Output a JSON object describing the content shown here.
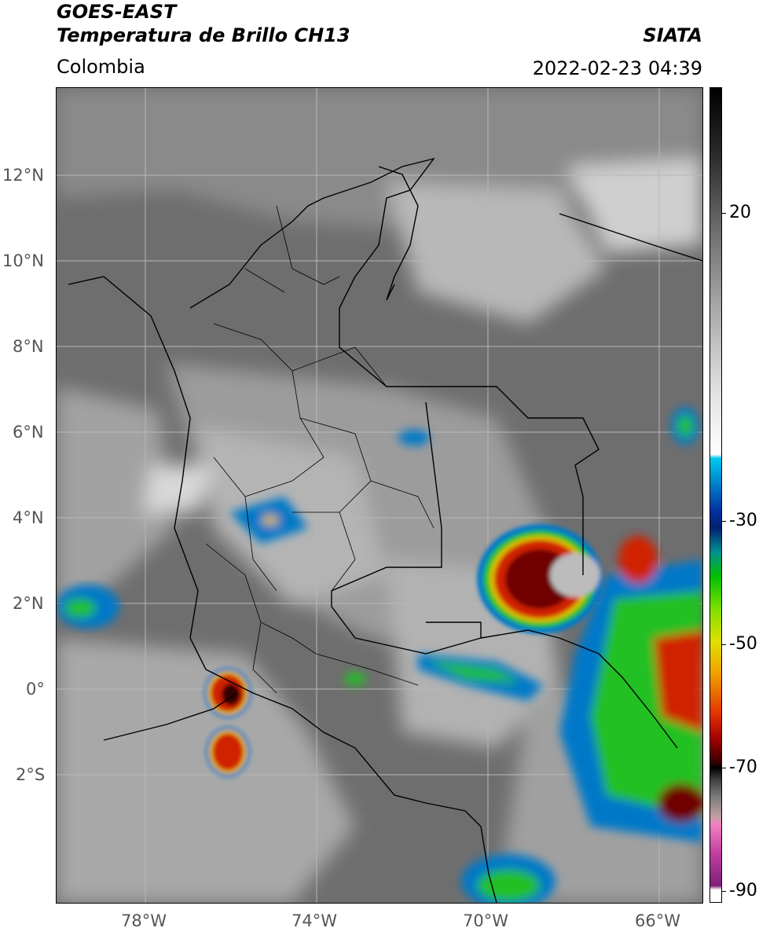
{
  "header": {
    "title_line1": "GOES-EAST",
    "title_line2": "Temperatura de Brillo CH13",
    "region": "Colombia",
    "source": "SIATA",
    "timestamp": "2022-02-23 04:39"
  },
  "map": {
    "latitude_labels": [
      "12°N",
      "10°N",
      "8°N",
      "6°N",
      "4°N",
      "2°N",
      "0°",
      "2°S"
    ],
    "longitude_labels": [
      "78°W",
      "74°W",
      "70°W",
      "66°W"
    ],
    "colors": {
      "ocean_cloudfree": "#6e6e6e",
      "land_cloudfree": "#9a9a9a",
      "cloud_warm": "#d8d8d8",
      "convection_edge": "#0078c8",
      "convection_mid": "#20c020",
      "convection_deep": "#d02000",
      "convection_core": "#300000",
      "overshoot": "#bcbcbc",
      "borders": "#000000",
      "gridlines": "#b8b8b8"
    }
  },
  "colorbar": {
    "tick_labels": [
      "20",
      "-30",
      "-50",
      "-70",
      "-90"
    ]
  }
}
